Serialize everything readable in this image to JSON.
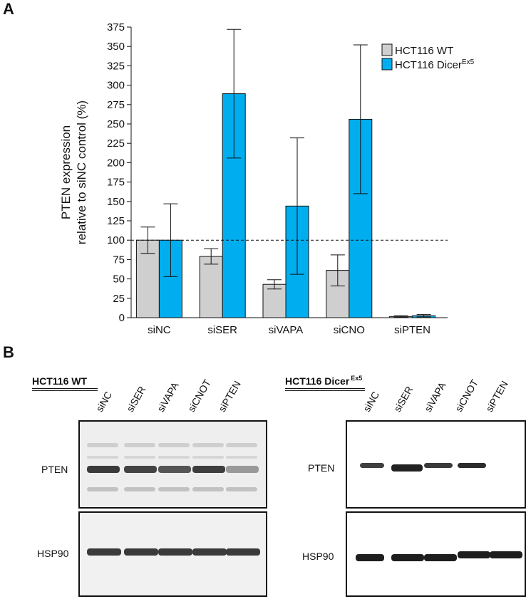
{
  "panel_labels": {
    "a": "A",
    "b": "B"
  },
  "chart_data": {
    "type": "bar",
    "title": "",
    "xlabel": "",
    "ylabel_line1": "PTEN expression",
    "ylabel_line2": "relative to siNC control (%)",
    "ylim": [
      0,
      375
    ],
    "yticks": [
      0,
      25,
      50,
      75,
      100,
      125,
      150,
      175,
      200,
      225,
      250,
      275,
      300,
      325,
      350,
      375
    ],
    "categories": [
      "siNC",
      "siSER",
      "siVAPA",
      "siCNO",
      "siPTEN"
    ],
    "reference_line": 100,
    "legend_position": "top-right",
    "series": [
      {
        "name": "HCT116 WT",
        "name_sup": "",
        "color": "#cfcfcf",
        "values": [
          100,
          79,
          43,
          61,
          1.5
        ],
        "errors": [
          17,
          10,
          6,
          20,
          1
        ]
      },
      {
        "name": "HCT116 Dicer",
        "name_sup": "Ex5",
        "color": "#00aeef",
        "values": [
          100,
          289,
          144,
          256,
          2.5
        ],
        "errors": [
          47,
          83,
          88,
          96,
          1.5
        ]
      }
    ]
  },
  "blots": {
    "wt": {
      "title": "HCT116 WT",
      "title_sup": "",
      "lanes": [
        "siNC",
        "siSER",
        "siVAPA",
        "siCNOT",
        "siPTEN"
      ],
      "rows": [
        {
          "label": "PTEN"
        },
        {
          "label": "HSP90"
        }
      ]
    },
    "dicer": {
      "title": "HCT116 Dicer",
      "title_sup": "Ex5",
      "lanes": [
        "siNC",
        "siSER",
        "siVAPA",
        "siCNOT",
        "siPTEN"
      ],
      "rows": [
        {
          "label": "PTEN"
        },
        {
          "label": "HSP90"
        }
      ]
    }
  }
}
